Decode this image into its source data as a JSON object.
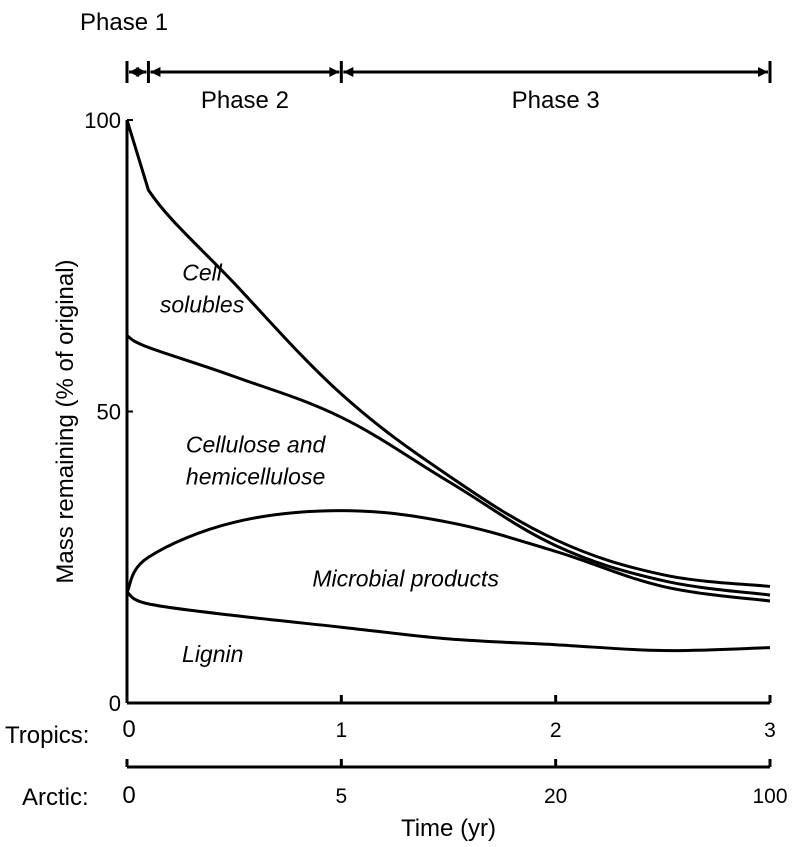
{
  "chart_data": {
    "type": "area",
    "ylabel": "Mass remaining (% of original)",
    "xlabel": "Time (yr)",
    "ylim": [
      0,
      100
    ],
    "y_ticks": [
      "0",
      "50",
      "100"
    ],
    "x_tropics": {
      "label": "Tropics:",
      "ticks": [
        {
          "value": 0,
          "label": "0"
        },
        {
          "value": 1,
          "label": "1"
        },
        {
          "value": 2,
          "label": "2"
        },
        {
          "value": 3,
          "label": "3"
        }
      ]
    },
    "x_arctic": {
      "label": "Arctic:",
      "ticks": [
        {
          "value": 0,
          "label": "0"
        },
        {
          "value": 5,
          "label": "5"
        },
        {
          "value": 20,
          "label": "20"
        },
        {
          "value": 100,
          "label": "100"
        }
      ]
    },
    "phases": [
      {
        "name": "Phase 1",
        "x_start": 0,
        "x_end": 0.1
      },
      {
        "name": "Phase 2",
        "x_start": 0.1,
        "x_end": 1
      },
      {
        "name": "Phase 3",
        "x_start": 1,
        "x_end": 3
      }
    ],
    "x": [
      0,
      0.1,
      0.5,
      1.0,
      1.5,
      2.0,
      2.5,
      3.0
    ],
    "series": [
      {
        "name": "Lignin",
        "values": [
          19,
          17,
          15,
          13,
          11,
          10,
          9,
          9.5
        ]
      },
      {
        "name": "Microbial products",
        "values": [
          19,
          25,
          31,
          33,
          31,
          26,
          20,
          17.5
        ]
      },
      {
        "name": "Cellulose and hemicellulose",
        "values": [
          63,
          61,
          56,
          49,
          38,
          27,
          21,
          18.5
        ]
      },
      {
        "name": "Cell solubles",
        "values": [
          100,
          88,
          72,
          53,
          39,
          28,
          22,
          20
        ]
      }
    ]
  }
}
